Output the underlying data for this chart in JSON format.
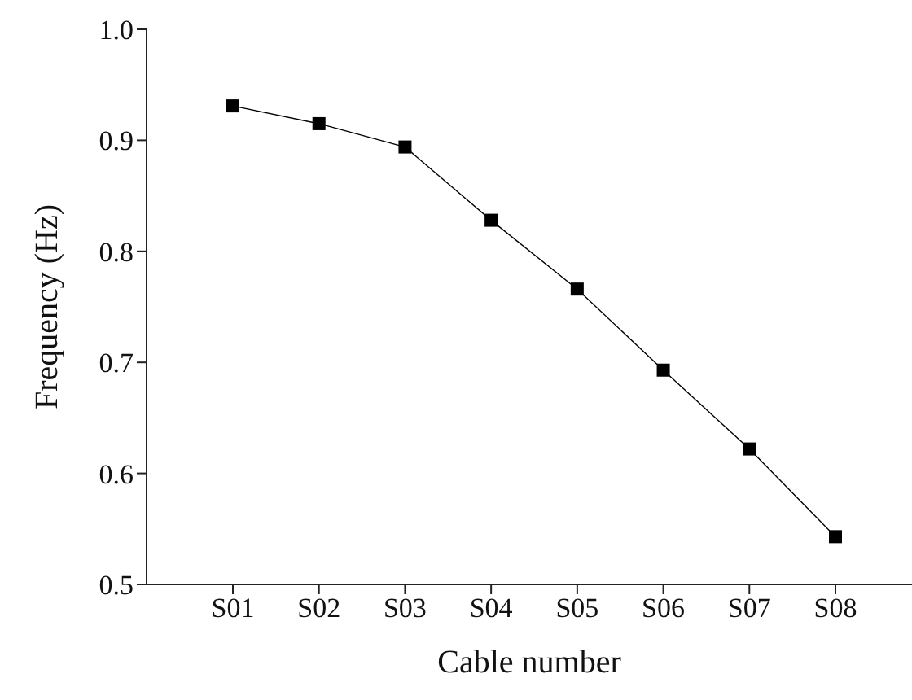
{
  "chart_data": {
    "type": "line",
    "xlabel": "Cable number",
    "ylabel": "Frequency (Hz)",
    "categories": [
      "S01",
      "S02",
      "S03",
      "S04",
      "S05",
      "S06",
      "S07",
      "S08"
    ],
    "series": [
      {
        "color": "#000000",
        "values": [
          0.931,
          0.915,
          0.894,
          0.828,
          0.766,
          0.693,
          0.622,
          0.543
        ]
      }
    ],
    "ylim": [
      0.5,
      1.0
    ],
    "yticks": [
      {
        "value": 0.5,
        "label": "0.5"
      },
      {
        "value": 0.6,
        "label": "0.6"
      },
      {
        "value": 0.7,
        "label": "0.7"
      },
      {
        "value": 0.8,
        "label": "0.8"
      },
      {
        "value": 0.9,
        "label": "0.9"
      },
      {
        "value": 1.0,
        "label": "1.0"
      }
    ],
    "grid": false,
    "legend": false,
    "marker": "square",
    "line_style": "solid"
  }
}
